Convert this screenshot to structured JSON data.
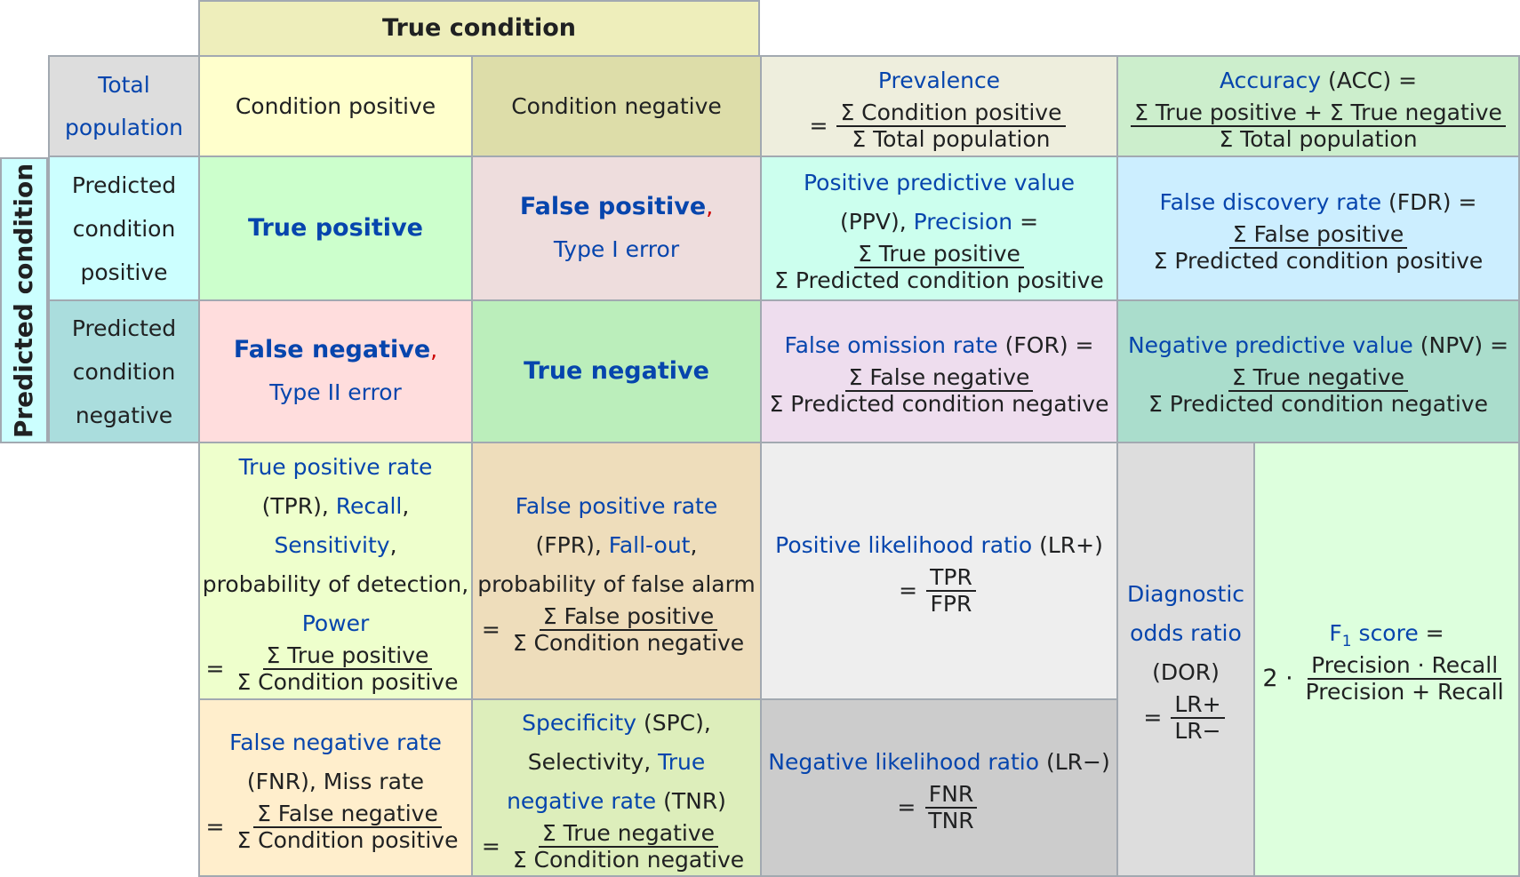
{
  "header": {
    "true_condition": "True condition",
    "predicted_condition": "Predicted condition"
  },
  "total_population": {
    "line1": "Total",
    "line2": "population"
  },
  "columns": {
    "condition_positive": "Condition positive",
    "condition_negative": "Condition negative"
  },
  "rows": {
    "predicted_positive": [
      "Predicted",
      "condition",
      "positive"
    ],
    "predicted_negative": [
      "Predicted",
      "condition",
      "negative"
    ]
  },
  "cells": {
    "tp": "True positive",
    "fp_label": "False positive",
    "fp_comma": ",",
    "fp_type": "Type I error",
    "fn_label": "False negative",
    "fn_comma": ",",
    "fn_type": "Type II error",
    "tn": "True negative"
  },
  "prevalence": {
    "name": "Prevalence",
    "eq": "=",
    "num": "Σ Condition positive",
    "den": "Σ Total population"
  },
  "accuracy": {
    "name": "Accuracy",
    "abbr": " (ACC) =",
    "num": "Σ True positive + Σ True negative",
    "den": "Σ Total population"
  },
  "ppv": {
    "name": "Positive predictive value",
    "abbr": "(PPV), ",
    "alt": "Precision",
    "eq": " =",
    "num": "Σ True positive",
    "den": "Σ Predicted condition positive"
  },
  "fdr": {
    "name": "False discovery rate",
    "abbr": " (FDR) =",
    "num": "Σ False positive",
    "den": "Σ Predicted condition positive"
  },
  "for": {
    "name": "False omission rate",
    "abbr": " (FOR) =",
    "num": "Σ False negative",
    "den": "Σ Predicted condition negative"
  },
  "npv": {
    "name": "Negative predictive value",
    "abbr": " (NPV) =",
    "num": "Σ True negative",
    "den": "Σ Predicted condition negative"
  },
  "tpr": {
    "name": "True positive rate",
    "abbr": "(TPR), ",
    "recall": "Recall",
    "comma1": ",",
    "sensitivity": "Sensitivity",
    "comma2": ",",
    "prob": "probability of detection,",
    "power": "Power",
    "eq": "=",
    "num": "Σ True positive",
    "den": "Σ Condition positive"
  },
  "fpr": {
    "name": "False positive rate",
    "abbr": "(FPR), ",
    "fallout": "Fall-out",
    "comma": ",",
    "prob": "probability of false alarm",
    "eq": "=",
    "num": "Σ False positive",
    "den": "Σ Condition negative"
  },
  "lr_pos": {
    "name": "Positive likelihood ratio",
    "abbr": " (LR+)",
    "eq": "=",
    "num": "TPR",
    "den": "FPR"
  },
  "dor": {
    "name1": "Diagnostic",
    "name2": "odds ratio",
    "abbr": "(DOR)",
    "eq": "=",
    "num": "LR+",
    "den": "LR−"
  },
  "f1": {
    "f": "F",
    "sub": "1",
    "name": " score",
    "eq": " =",
    "coef": "2 ·",
    "num": "Precision · Recall",
    "den": "Precision + Recall"
  },
  "fnr": {
    "name": "False negative rate",
    "abbr": "(FNR), Miss rate",
    "eq": "=",
    "num": "Σ False negative",
    "den": "Σ Condition positive"
  },
  "spc": {
    "name": "Specificity",
    "abbr": " (SPC),",
    "sel": "Selectivity, ",
    "tnr1": "True",
    "tnr2": "negative rate",
    "tnr_abbr": " (TNR)",
    "eq": "=",
    "num": "Σ True negative",
    "den": "Σ Condition negative"
  },
  "lr_neg": {
    "name": "Negative likelihood ratio",
    "abbr": " (LR−)",
    "eq": "=",
    "num": "FNR",
    "den": "TNR"
  },
  "colors": {
    "true_condition_bg": "#eeeebb",
    "total_pop_bg": "#dddddd",
    "cond_pos_bg": "#ffffcc",
    "cond_neg_bg": "#dddda9",
    "prevalence_bg": "#eeeedd",
    "accuracy_bg": "#cceecc",
    "pred_pos_bg": "#ccffff",
    "pred_neg_bg": "#aadddd",
    "tp_bg": "#ccffcc",
    "fp_bg": "#eedddd",
    "fn_bg": "#ffdddd",
    "tn_bg": "#bbeebb",
    "ppv_bg": "#ccffee",
    "fdr_bg": "#cceeff",
    "for_bg": "#eeddee",
    "npv_bg": "#aaddcc",
    "tpr_bg": "#eeffcc",
    "fpr_bg": "#eeddbb",
    "lr_pos_bg": "#eeeeee",
    "lr_neg_bg": "#cccccc",
    "dor_bg": "#dddddd",
    "f1_bg": "#ddffdd",
    "fnr_bg": "#ffeecc",
    "spc_bg": "#ddeebb"
  }
}
